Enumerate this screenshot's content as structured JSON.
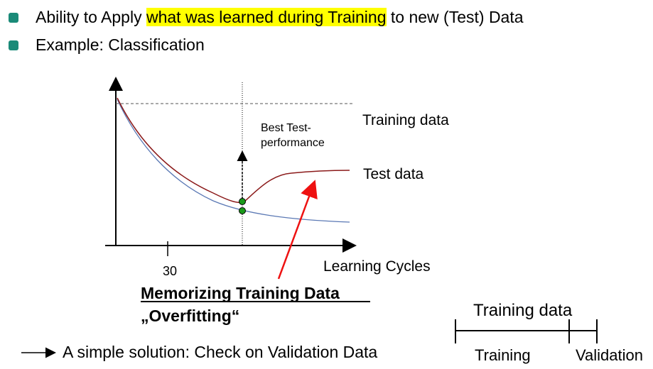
{
  "bullets": [
    {
      "pre": "Ability to Apply ",
      "highlight": "what was learned during Training",
      "post": " to new (Test) Data"
    },
    {
      "text": "Example:  Classification"
    }
  ],
  "chart": {
    "training_label": "Training data",
    "test_label": "Test data",
    "best_label_1": "Best Test-",
    "best_label_2": "performance",
    "x_tick": "30",
    "x_axis_label": "Learning Cycles"
  },
  "overfit": {
    "line1": "Memorizing Training Data",
    "line2": "„Overfitting“"
  },
  "solution": "A simple solution: Check on Validation Data",
  "split": {
    "title": "Training data",
    "left": "Training",
    "right": "Validation"
  },
  "colors": {
    "bullet": "#1a8a78",
    "highlight": "#ffff00",
    "test_curve": "#8b1a1a",
    "training_curve": "#5a78b4",
    "arrow": "#ee1111",
    "marker": "#1a9a1a"
  }
}
